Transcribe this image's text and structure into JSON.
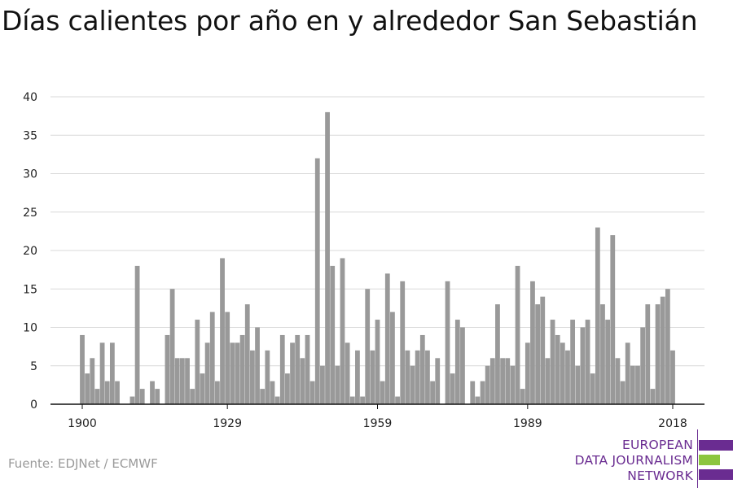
{
  "chart_data": {
    "type": "bar",
    "title": "Días calientes por año en y alrededor San Sebastián",
    "x": [
      1900,
      1901,
      1902,
      1903,
      1904,
      1905,
      1906,
      1907,
      1908,
      1909,
      1910,
      1911,
      1912,
      1913,
      1914,
      1915,
      1916,
      1917,
      1918,
      1919,
      1920,
      1921,
      1922,
      1923,
      1924,
      1925,
      1926,
      1927,
      1928,
      1929,
      1930,
      1931,
      1932,
      1933,
      1934,
      1935,
      1936,
      1937,
      1938,
      1939,
      1940,
      1941,
      1942,
      1943,
      1944,
      1945,
      1946,
      1947,
      1948,
      1949,
      1950,
      1951,
      1952,
      1953,
      1954,
      1955,
      1956,
      1957,
      1958,
      1959,
      1960,
      1961,
      1962,
      1963,
      1964,
      1965,
      1966,
      1967,
      1968,
      1969,
      1970,
      1971,
      1972,
      1973,
      1974,
      1975,
      1976,
      1977,
      1978,
      1979,
      1980,
      1981,
      1982,
      1983,
      1984,
      1985,
      1986,
      1987,
      1988,
      1989,
      1990,
      1991,
      1992,
      1993,
      1994,
      1995,
      1996,
      1997,
      1998,
      1999,
      2000,
      2001,
      2002,
      2003,
      2004,
      2005,
      2006,
      2007,
      2008,
      2009,
      2010,
      2011,
      2012,
      2013,
      2014,
      2015,
      2016,
      2017,
      2018
    ],
    "values": [
      9,
      4,
      6,
      2,
      8,
      3,
      8,
      3,
      0,
      0,
      1,
      18,
      2,
      0,
      3,
      2,
      0,
      9,
      15,
      6,
      6,
      6,
      2,
      11,
      4,
      8,
      12,
      3,
      19,
      12,
      8,
      8,
      9,
      13,
      7,
      10,
      2,
      7,
      3,
      1,
      9,
      4,
      8,
      9,
      6,
      9,
      3,
      32,
      5,
      38,
      18,
      5,
      19,
      8,
      1,
      7,
      1,
      15,
      7,
      11,
      3,
      17,
      12,
      1,
      16,
      7,
      5,
      7,
      9,
      7,
      3,
      6,
      0,
      16,
      4,
      11,
      10,
      0,
      3,
      1,
      3,
      5,
      6,
      13,
      6,
      6,
      5,
      18,
      2,
      8,
      16,
      13,
      14,
      6,
      11,
      9,
      8,
      7,
      11,
      5,
      10,
      11,
      4,
      23,
      13,
      11,
      22,
      6,
      3,
      8,
      5,
      5,
      10,
      13,
      2,
      13,
      14,
      15,
      7
    ],
    "x_ticks": [
      1900,
      1929,
      1959,
      1989,
      2018
    ],
    "y_ticks": [
      0,
      5,
      10,
      15,
      20,
      25,
      30,
      35,
      40
    ],
    "ylim": [
      0,
      40
    ],
    "xlim": [
      1900,
      2018
    ],
    "grid": true,
    "bar_color": "#999999",
    "grid_color": "#d9d9d9"
  },
  "source": "Fuente: EDJNet / ECMWF",
  "logo": {
    "lines": [
      "EUROPEAN",
      "DATA JOURNALISM",
      "NETWORK"
    ],
    "colors": [
      "#6a2c91",
      "#8cc63f",
      "#6a2c91"
    ]
  }
}
